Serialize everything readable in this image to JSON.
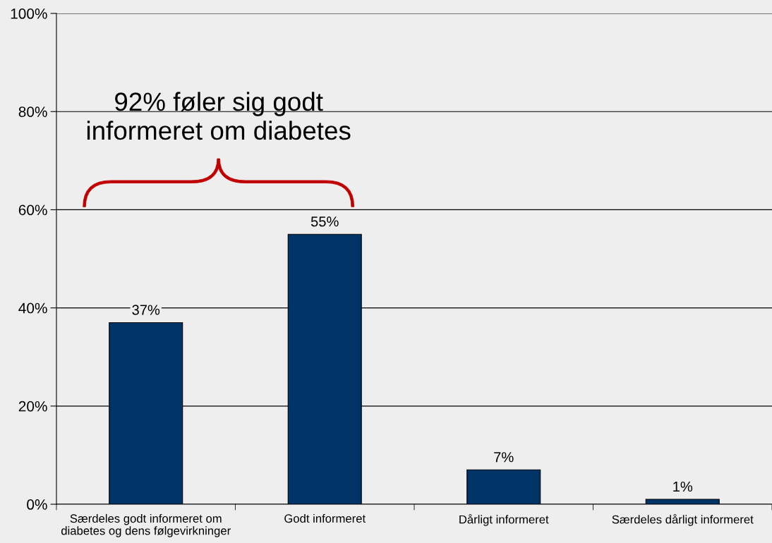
{
  "chart_data": {
    "type": "bar",
    "categories": [
      "Særdeles godt informeret om\ndiabetes og dens følgevirkninger",
      "Godt informeret",
      "Dårligt informeret",
      "Særdeles dårligt informeret"
    ],
    "values": [
      37,
      55,
      7,
      1
    ],
    "color": "#003366",
    "value_labels": [
      "37%",
      "55%",
      "7%",
      "1%"
    ],
    "ylim": [
      0,
      100
    ],
    "yticks": [
      {
        "value": 0,
        "label": "0%"
      },
      {
        "value": 20,
        "label": "20%"
      },
      {
        "value": 40,
        "label": "40%"
      },
      {
        "value": 60,
        "label": "60%"
      },
      {
        "value": 80,
        "label": "80%"
      },
      {
        "value": 100,
        "label": "100%"
      }
    ],
    "grid": "y",
    "annotations": [
      "92% føler sig godt\ninformeret om diabetes"
    ]
  }
}
